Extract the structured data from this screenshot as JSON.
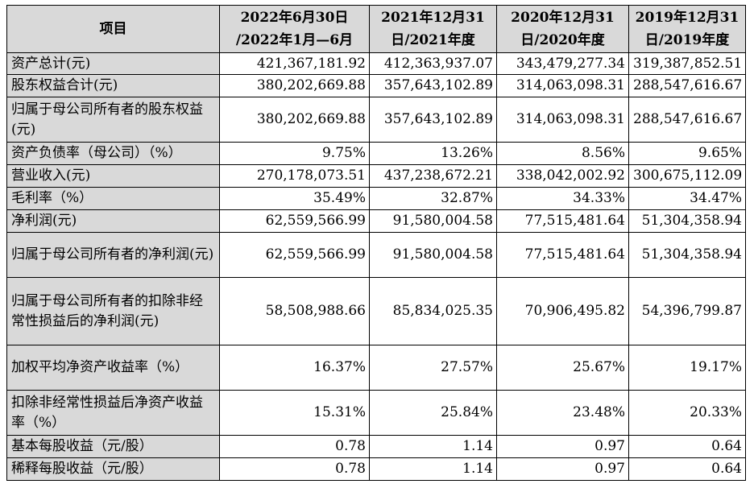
{
  "table": {
    "headers": [
      "项目",
      "2022年6月30日\n/2022年1月—6月",
      "2021年12月31\n日/2021年度",
      "2020年12月31\n日/2020年度",
      "2019年12月31\n日/2019年度"
    ],
    "rows": [
      {
        "label": "资产总计(元)",
        "values": [
          "421,367,181.92",
          "412,363,937.07",
          "343,479,277.34",
          "319,387,852.51"
        ]
      },
      {
        "label": "股东权益合计(元)",
        "values": [
          "380,202,669.88",
          "357,643,102.89",
          "314,063,098.31",
          "288,547,616.67"
        ]
      },
      {
        "label": "归属于母公司所有者的股东权益(元)",
        "values": [
          "380,202,669.88",
          "357,643,102.89",
          "314,063,098.31",
          "288,547,616.67"
        ]
      },
      {
        "label": "资产负债率（母公司）（%）",
        "values": [
          "9.75%",
          "13.26%",
          "8.56%",
          "9.65%"
        ]
      },
      {
        "label": "营业收入(元)",
        "values": [
          "270,178,073.51",
          "437,238,672.21",
          "338,042,002.92",
          "300,675,112.09"
        ]
      },
      {
        "label": "毛利率（%）",
        "values": [
          "35.49%",
          "32.87%",
          "34.33%",
          "34.47%"
        ]
      },
      {
        "label": "净利润(元)",
        "values": [
          "62,559,566.99",
          "91,580,004.58",
          "77,515,481.64",
          "51,304,358.94"
        ]
      },
      {
        "label": "归属于母公司所有者的净利润(元)",
        "values": [
          "62,559,566.99",
          "91,580,004.58",
          "77,515,481.64",
          "51,304,358.94"
        ]
      },
      {
        "label": "归属于母公司所有者的扣除非经常性损益后的净利润(元)",
        "values": [
          "58,508,988.66",
          "85,834,025.35",
          "70,906,495.82",
          "54,396,799.87"
        ]
      },
      {
        "label": "加权平均净资产收益率（%）",
        "values": [
          "16.37%",
          "27.57%",
          "25.67%",
          "19.17%"
        ]
      },
      {
        "label": "扣除非经常性损益后净资产收益率（%）",
        "values": [
          "15.31%",
          "25.84%",
          "23.48%",
          "20.33%"
        ]
      },
      {
        "label": "基本每股收益（元/股）",
        "values": [
          "0.78",
          "1.14",
          "0.97",
          "0.64"
        ]
      },
      {
        "label": "稀释每股收益（元/股）",
        "values": [
          "0.78",
          "1.14",
          "0.97",
          "0.64"
        ]
      }
    ]
  }
}
